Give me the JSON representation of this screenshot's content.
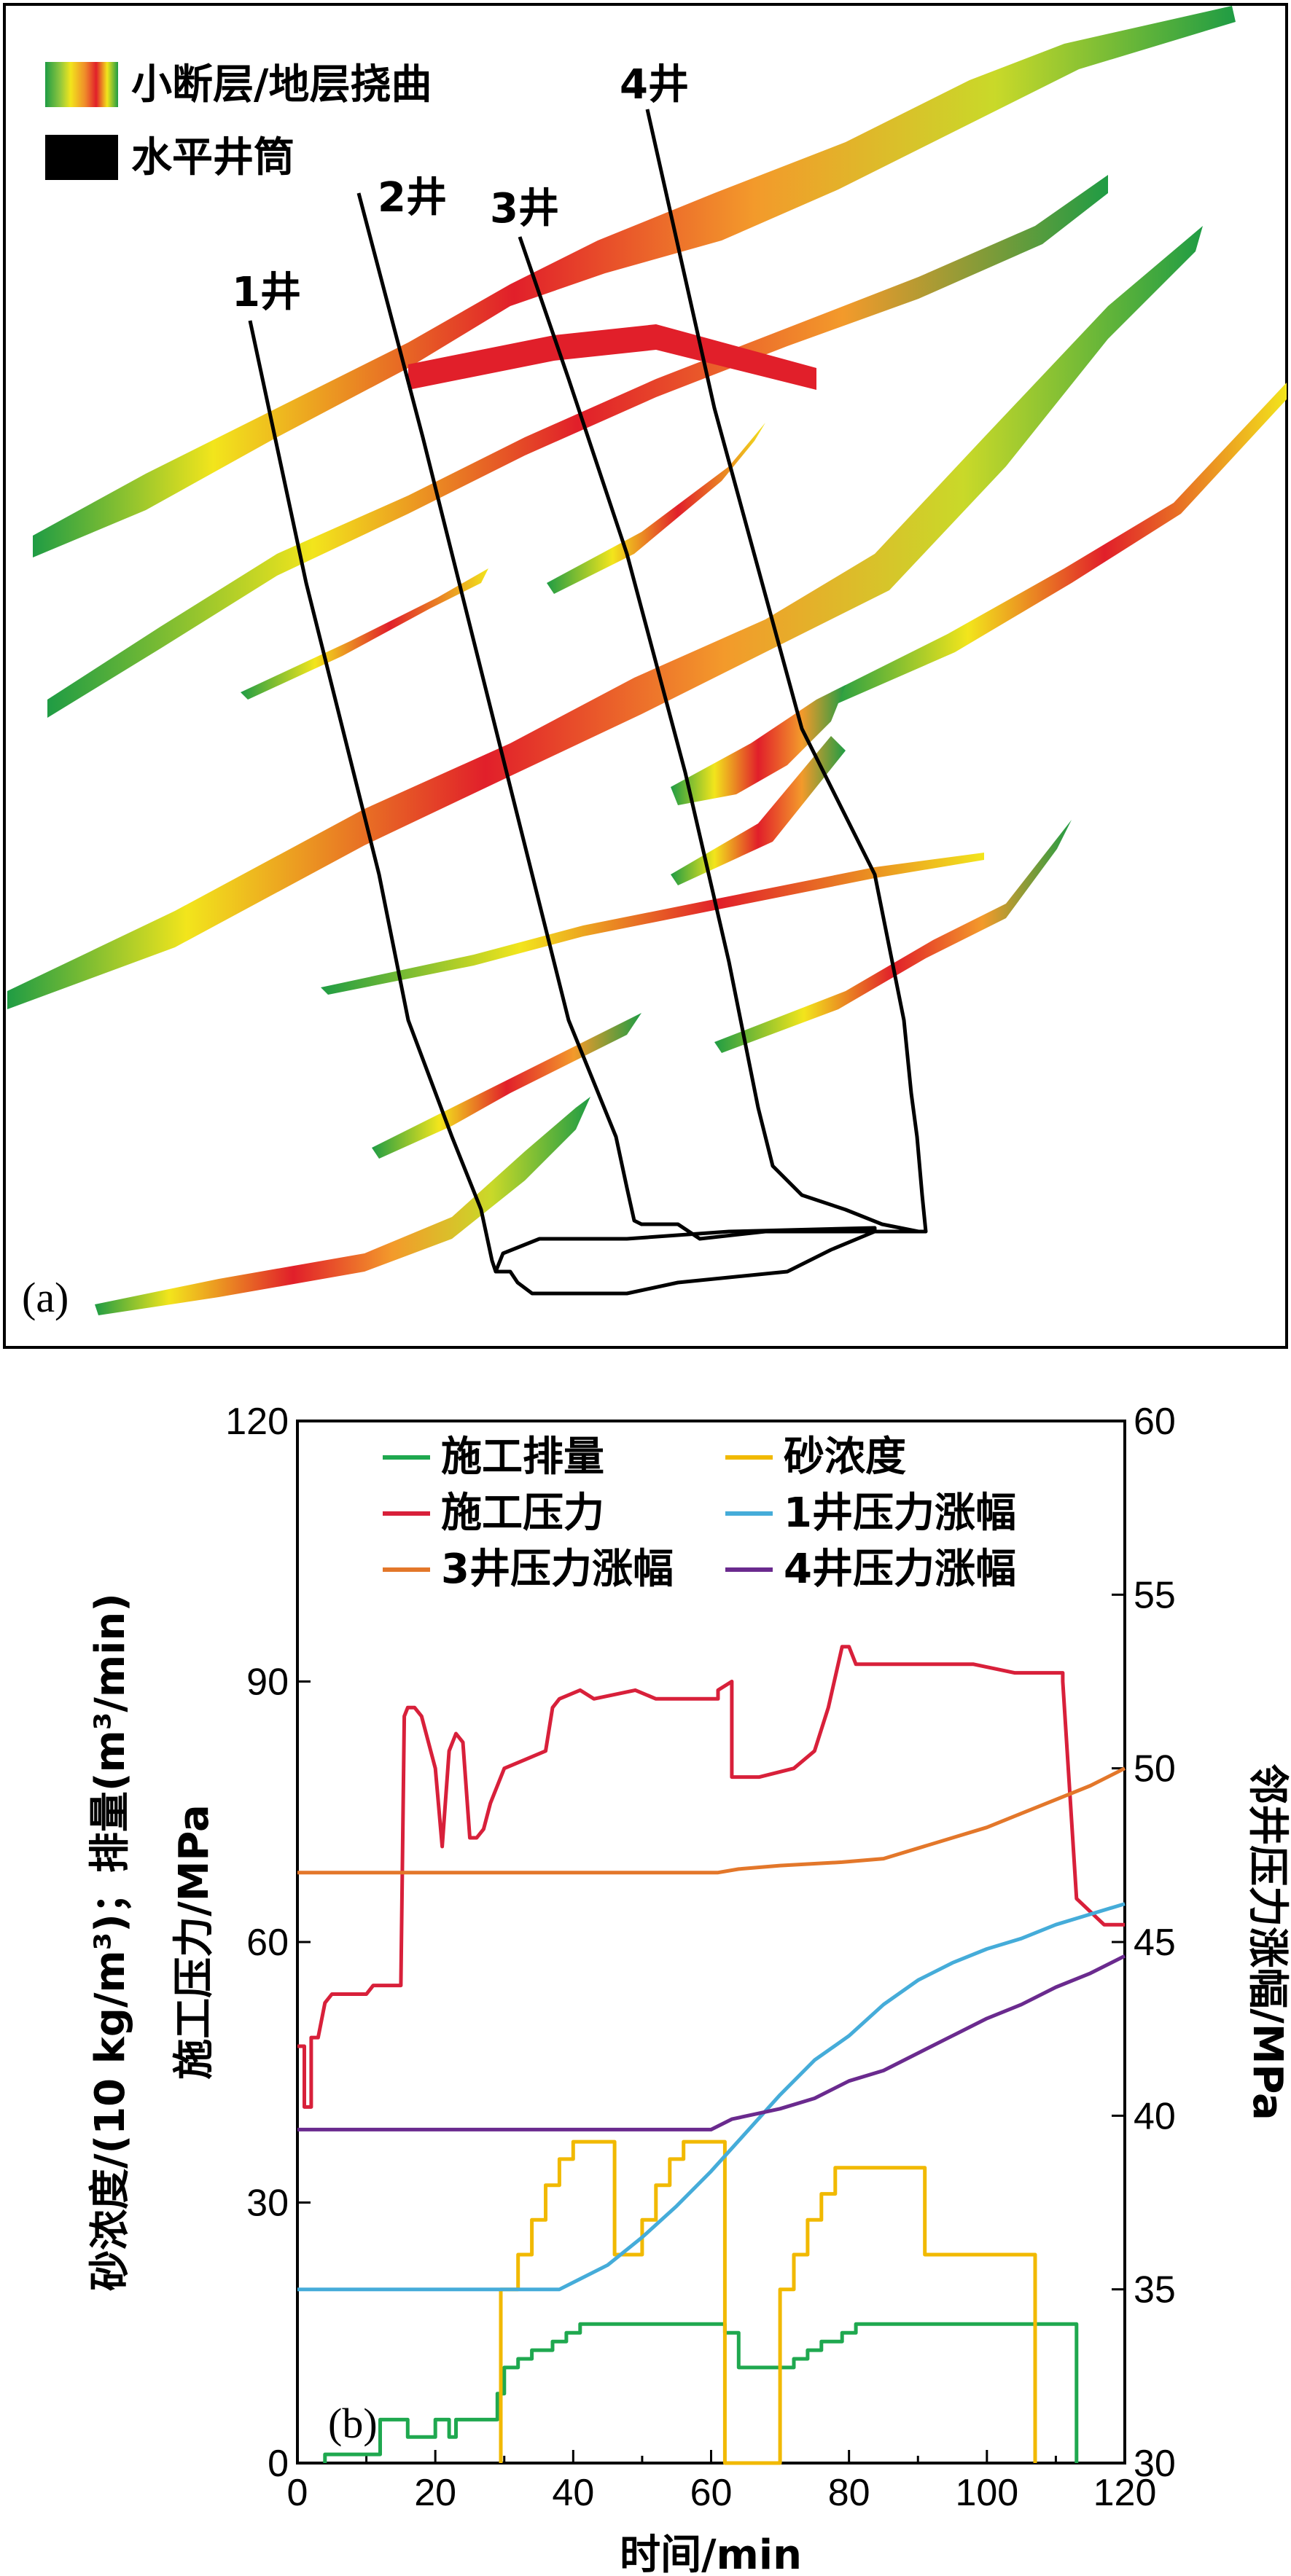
{
  "panel_a": {
    "tag": "(a)",
    "legend": [
      {
        "label": "小断层/地层挠曲",
        "swatch": "gradient"
      },
      {
        "label": "水平井筒",
        "swatch": "black"
      }
    ],
    "wells": [
      "1井",
      "2井",
      "3井",
      "4井"
    ],
    "colors": {
      "green": "#22a846",
      "yellow": "#f2e51c",
      "orange": "#f39a2b",
      "red": "#e11f2a"
    }
  },
  "chart_data": {
    "type": "line",
    "panel_tag": "(b)",
    "xlabel": "时间/min",
    "ylabel_left_line1": "砂浓度/(10 kg/m³)；排量(m³/min)",
    "ylabel_left_line2": "施工压力/MPa",
    "ylabel_right": "邻井压力涨幅/MPa",
    "xlim": [
      0,
      120
    ],
    "ylim_left": [
      0,
      120
    ],
    "ylim_right": [
      30,
      60
    ],
    "x_ticks": [
      "0",
      "20",
      "40",
      "60",
      "80",
      "100",
      "120"
    ],
    "y_left_ticks": [
      "0",
      "30",
      "60",
      "90",
      "120"
    ],
    "y_right_ticks": [
      "30",
      "35",
      "40",
      "45",
      "50",
      "55",
      "60"
    ],
    "legend": [
      "施工排量",
      "砂浓度",
      "施工压力",
      "1井压力涨幅",
      "3井压力涨幅",
      "4井压力涨幅"
    ],
    "series": [
      {
        "name": "施工排量",
        "axis": "left",
        "color": "#1fa84f",
        "step": true,
        "points": [
          [
            4,
            0
          ],
          [
            4,
            1
          ],
          [
            12,
            1
          ],
          [
            12,
            5
          ],
          [
            16,
            5
          ],
          [
            16,
            3
          ],
          [
            20,
            3
          ],
          [
            20,
            5
          ],
          [
            22,
            5
          ],
          [
            22,
            3
          ],
          [
            23,
            3
          ],
          [
            23,
            5
          ],
          [
            29,
            5
          ],
          [
            29,
            8
          ],
          [
            30,
            8
          ],
          [
            30,
            11
          ],
          [
            32,
            11
          ],
          [
            32,
            12
          ],
          [
            34,
            12
          ],
          [
            34,
            13
          ],
          [
            37,
            13
          ],
          [
            37,
            14
          ],
          [
            39,
            14
          ],
          [
            39,
            15
          ],
          [
            41,
            15
          ],
          [
            41,
            16
          ],
          [
            62,
            16
          ],
          [
            62,
            15
          ],
          [
            64,
            15
          ],
          [
            64,
            11
          ],
          [
            72,
            11
          ],
          [
            72,
            12
          ],
          [
            74,
            12
          ],
          [
            74,
            13
          ],
          [
            76,
            13
          ],
          [
            76,
            14
          ],
          [
            79,
            14
          ],
          [
            79,
            15
          ],
          [
            81,
            15
          ],
          [
            81,
            16
          ],
          [
            113,
            16
          ],
          [
            113,
            0
          ]
        ]
      },
      {
        "name": "砂浓度",
        "axis": "left",
        "color": "#f1b900",
        "step": true,
        "points": [
          [
            29.5,
            0
          ],
          [
            29.5,
            20
          ],
          [
            32,
            20
          ],
          [
            32,
            24
          ],
          [
            34,
            24
          ],
          [
            34,
            28
          ],
          [
            36,
            28
          ],
          [
            36,
            32
          ],
          [
            38,
            32
          ],
          [
            38,
            35
          ],
          [
            40,
            35
          ],
          [
            40,
            37
          ],
          [
            46,
            37
          ],
          [
            46,
            24
          ],
          [
            50,
            24
          ],
          [
            50,
            28
          ],
          [
            52,
            28
          ],
          [
            52,
            32
          ],
          [
            54,
            32
          ],
          [
            54,
            35
          ],
          [
            56,
            35
          ],
          [
            56,
            37
          ],
          [
            62,
            37
          ],
          [
            62,
            0
          ],
          [
            70,
            0
          ],
          [
            70,
            20
          ],
          [
            72,
            20
          ],
          [
            72,
            24
          ],
          [
            74,
            24
          ],
          [
            74,
            28
          ],
          [
            76,
            28
          ],
          [
            76,
            31
          ],
          [
            78,
            31
          ],
          [
            78,
            34
          ],
          [
            91,
            34
          ],
          [
            91,
            24
          ],
          [
            107,
            24
          ],
          [
            107,
            0
          ]
        ]
      },
      {
        "name": "施工压力",
        "axis": "left",
        "color": "#d8203a",
        "step": false,
        "points": [
          [
            0,
            48
          ],
          [
            1,
            48
          ],
          [
            1,
            41
          ],
          [
            2,
            41
          ],
          [
            2,
            49
          ],
          [
            3,
            49
          ],
          [
            4,
            53
          ],
          [
            5,
            54
          ],
          [
            10,
            54
          ],
          [
            11,
            55
          ],
          [
            15,
            55
          ],
          [
            15.5,
            86
          ],
          [
            16,
            87
          ],
          [
            17,
            87
          ],
          [
            18,
            86
          ],
          [
            20,
            80
          ],
          [
            21,
            71
          ],
          [
            22,
            82
          ],
          [
            23,
            84
          ],
          [
            24,
            83
          ],
          [
            25,
            72
          ],
          [
            26,
            72
          ],
          [
            27,
            73
          ],
          [
            28,
            76
          ],
          [
            29,
            78
          ],
          [
            30,
            80
          ],
          [
            33,
            81
          ],
          [
            36,
            82
          ],
          [
            37,
            87
          ],
          [
            38,
            88
          ],
          [
            41,
            89
          ],
          [
            43,
            88
          ],
          [
            49,
            89
          ],
          [
            52,
            88
          ],
          [
            58,
            88
          ],
          [
            61,
            88
          ],
          [
            61,
            89
          ],
          [
            63,
            90
          ],
          [
            63,
            79
          ],
          [
            67,
            79
          ],
          [
            72,
            80
          ],
          [
            75,
            82
          ],
          [
            77,
            87
          ],
          [
            79,
            94
          ],
          [
            80,
            94
          ],
          [
            81,
            92
          ],
          [
            90,
            92
          ],
          [
            95,
            92
          ],
          [
            98,
            92
          ],
          [
            104,
            91
          ],
          [
            109,
            91
          ],
          [
            111,
            91
          ],
          [
            111,
            90
          ],
          [
            113,
            65
          ],
          [
            117,
            62
          ],
          [
            120,
            62
          ]
        ]
      },
      {
        "name": "1井压力涨幅",
        "axis": "right",
        "color": "#45acd9",
        "step": false,
        "points": [
          [
            0,
            35
          ],
          [
            38,
            35
          ],
          [
            41,
            35.3
          ],
          [
            45,
            35.7
          ],
          [
            50,
            36.5
          ],
          [
            55,
            37.4
          ],
          [
            60,
            38.4
          ],
          [
            65,
            39.5
          ],
          [
            70,
            40.6
          ],
          [
            75,
            41.6
          ],
          [
            80,
            42.3
          ],
          [
            85,
            43.2
          ],
          [
            90,
            43.9
          ],
          [
            95,
            44.4
          ],
          [
            100,
            44.8
          ],
          [
            105,
            45.1
          ],
          [
            110,
            45.5
          ],
          [
            115,
            45.8
          ],
          [
            120,
            46.1
          ]
        ]
      },
      {
        "name": "3井压力涨幅",
        "axis": "right",
        "color": "#e3772a",
        "step": false,
        "points": [
          [
            0,
            47
          ],
          [
            61,
            47
          ],
          [
            64,
            47.1
          ],
          [
            70,
            47.2
          ],
          [
            79,
            47.3
          ],
          [
            85,
            47.4
          ],
          [
            90,
            47.7
          ],
          [
            95,
            48
          ],
          [
            100,
            48.3
          ],
          [
            105,
            48.7
          ],
          [
            110,
            49.1
          ],
          [
            115,
            49.5
          ],
          [
            120,
            50
          ]
        ]
      },
      {
        "name": "4井压力涨幅",
        "axis": "right",
        "color": "#6a2a8e",
        "step": false,
        "points": [
          [
            0,
            39.6
          ],
          [
            60,
            39.6
          ],
          [
            63,
            39.9
          ],
          [
            70,
            40.2
          ],
          [
            75,
            40.5
          ],
          [
            80,
            41
          ],
          [
            85,
            41.3
          ],
          [
            90,
            41.8
          ],
          [
            95,
            42.3
          ],
          [
            100,
            42.8
          ],
          [
            105,
            43.2
          ],
          [
            110,
            43.7
          ],
          [
            115,
            44.1
          ],
          [
            120,
            44.6
          ]
        ]
      }
    ]
  }
}
